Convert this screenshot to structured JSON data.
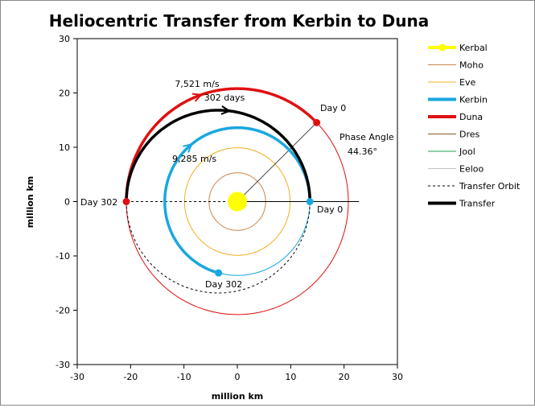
{
  "chart_data": {
    "type": "scatter",
    "title": "Heliocentric Transfer from Kerbin to Duna",
    "xlabel": "million km",
    "ylabel": "million km",
    "xlim": [
      -30,
      30
    ],
    "ylim": [
      -30,
      30
    ],
    "xticks": [
      "-30",
      "-20",
      "-10",
      "0",
      "10",
      "20",
      "30"
    ],
    "yticks": [
      "-30",
      "-20",
      "-10",
      "0",
      "10",
      "20",
      "30"
    ],
    "grid": false,
    "legend_position": "right",
    "orbits": [
      {
        "name": "Kerbal",
        "color": "#ffff00",
        "radius": 0,
        "marker": true
      },
      {
        "name": "Moho",
        "color": "#c8864a",
        "radius": 5.3
      },
      {
        "name": "Eve",
        "color": "#f0b020",
        "radius": 9.9
      },
      {
        "name": "Kerbin",
        "color": "#1aa7e0",
        "radius": 13.6
      },
      {
        "name": "Duna",
        "color": "#e01010",
        "radius": 20.8
      },
      {
        "name": "Dres",
        "color": "#8b5a2b",
        "radius": null
      },
      {
        "name": "Jool",
        "color": "#1e9e50",
        "radius": null
      },
      {
        "name": "Eeloo",
        "color": "#c0c0c0",
        "radius": null
      }
    ],
    "transfer": {
      "name": "Transfer",
      "perihelion": 13.6,
      "aphelion": 20.8,
      "color": "#000000"
    },
    "transfer_orbit": {
      "name": "Transfer Orbit",
      "style": "dashed"
    },
    "kerbin_day0_angle_deg": 0,
    "kerbin_day302_angle_deg": 255,
    "duna_day0_angle_deg": 44.36,
    "duna_day302_angle_deg": 180,
    "annotations": {
      "kerbin_dv": "9,285 m/s",
      "duna_dv": "7,521 m/s",
      "duration": "302 days",
      "duna_day0": "Day 0",
      "kerbin_day0": "Day 0",
      "duna_day302": "Day 302",
      "kerbin_day302": "Day 302",
      "phase_label": "Phase Angle",
      "phase_value": "44.36°"
    }
  }
}
